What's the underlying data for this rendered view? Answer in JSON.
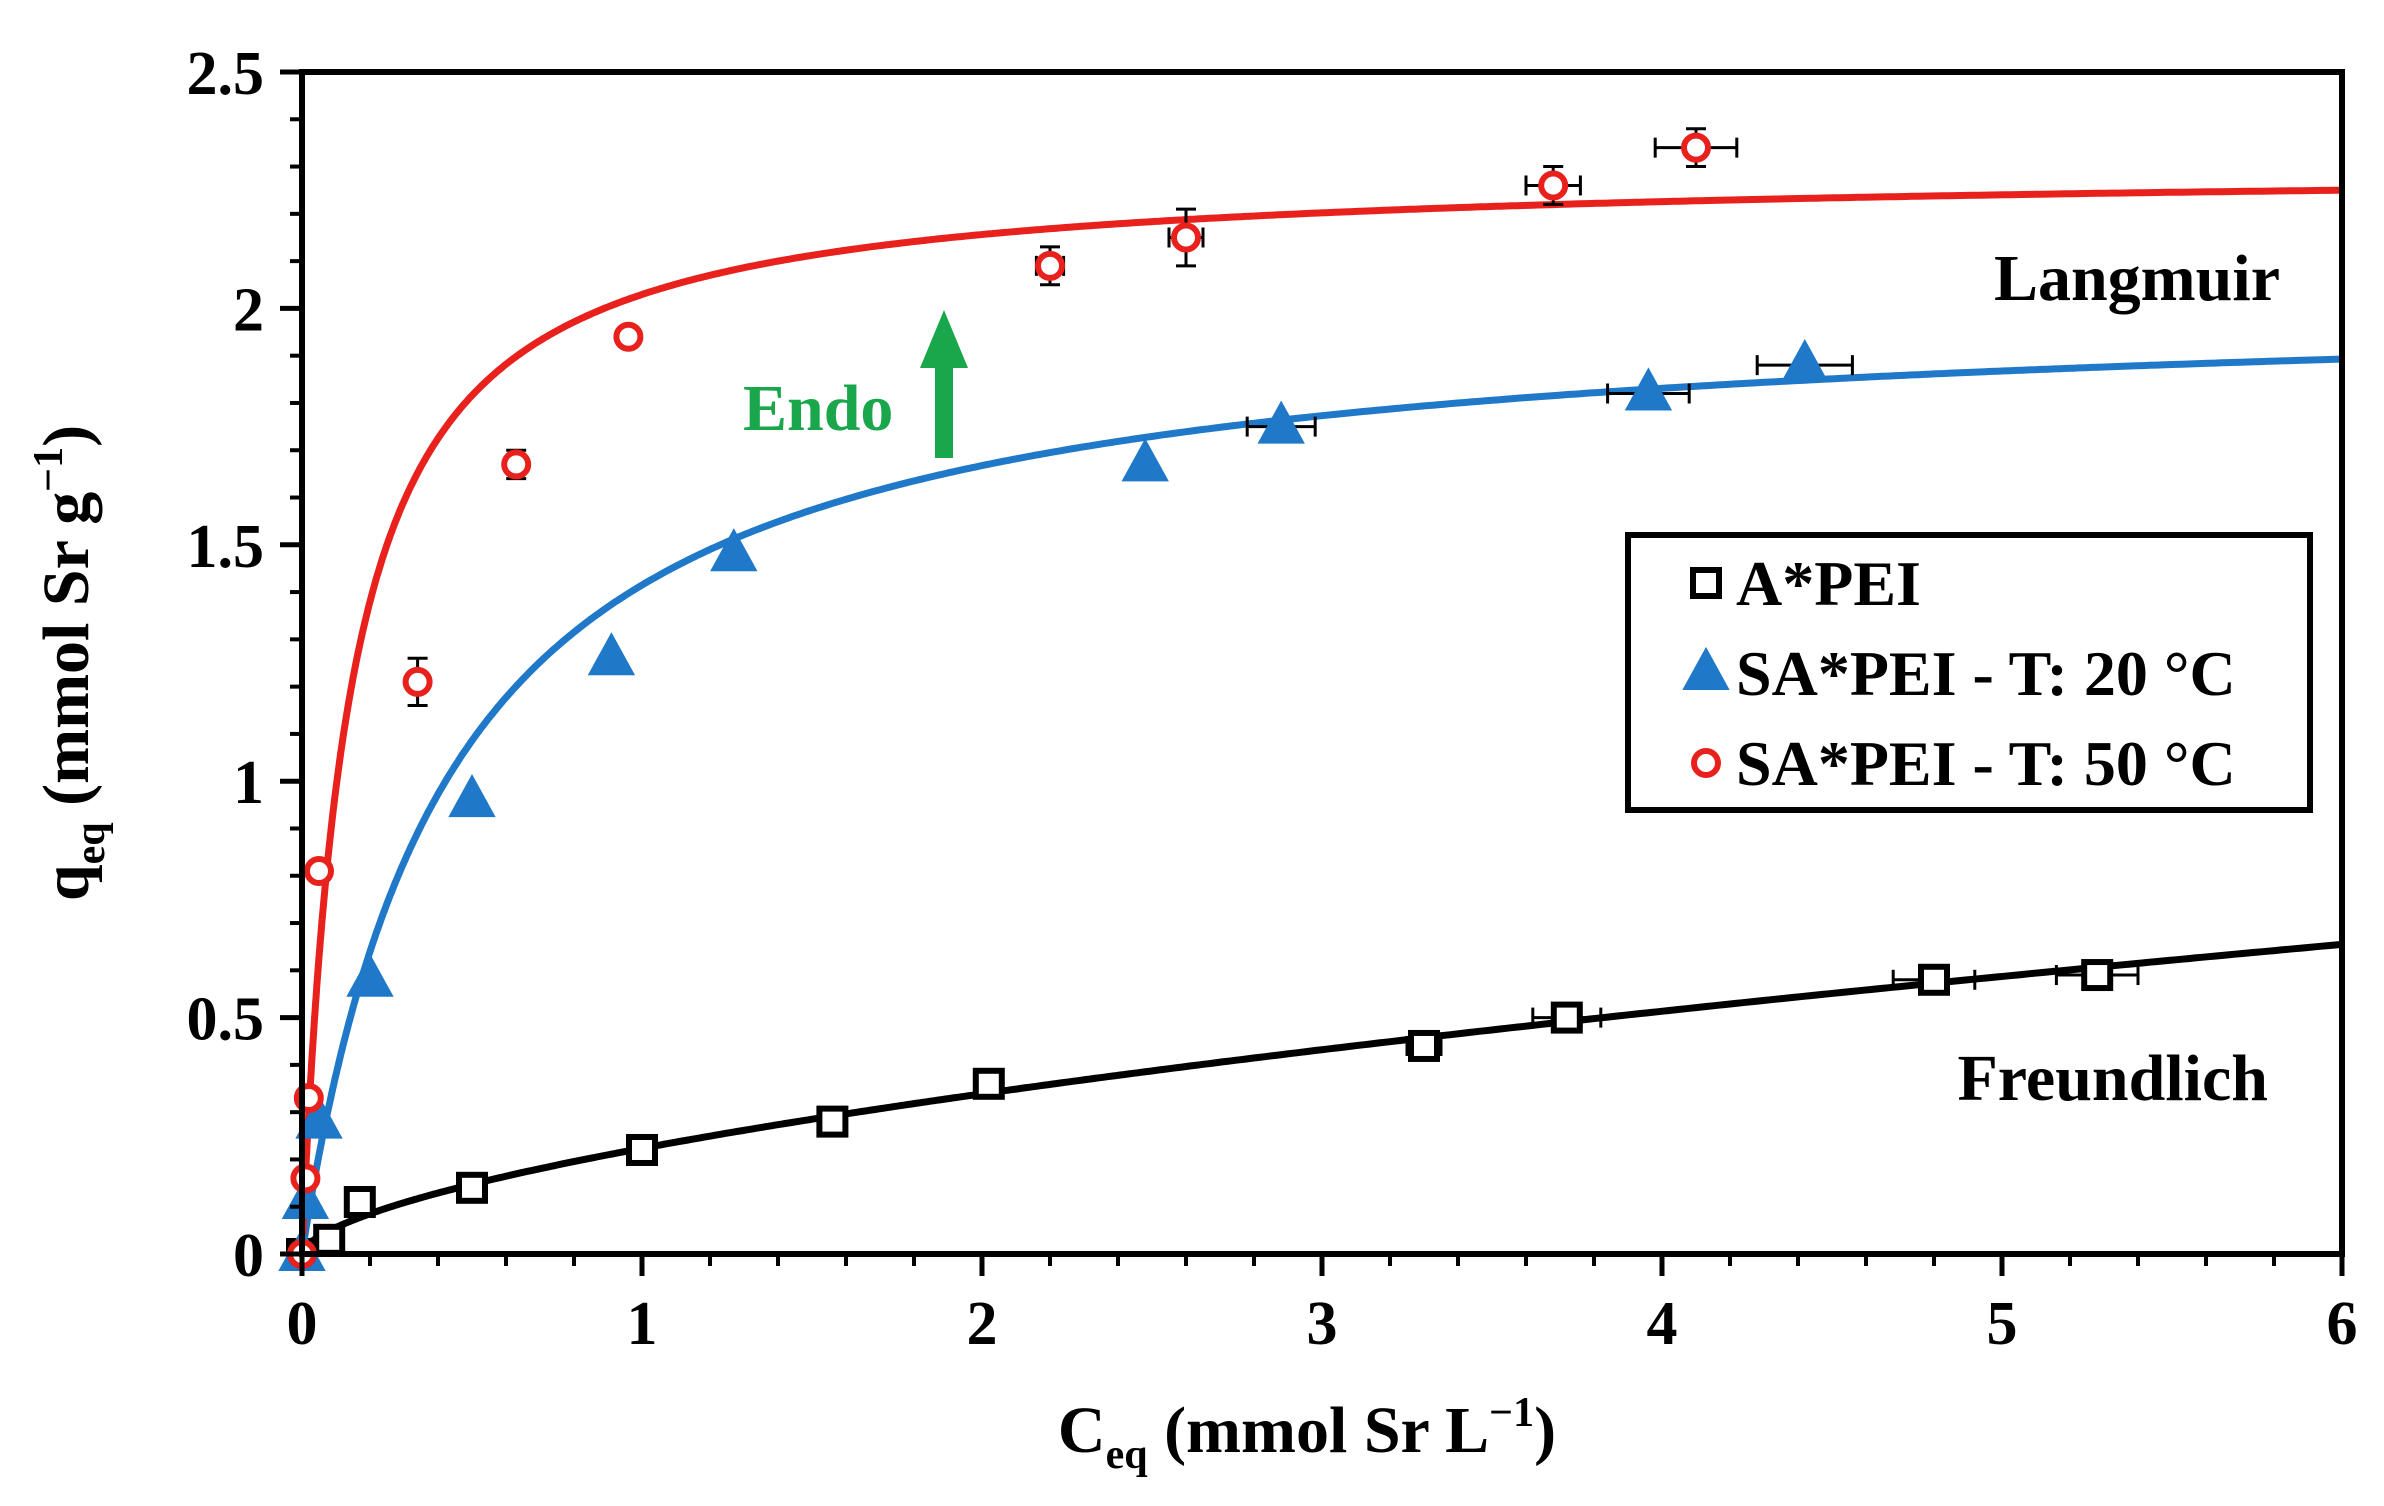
{
  "chart_data": {
    "type": "scatter",
    "xlabel": {
      "main": "C",
      "sub": "eq",
      "rest": " (mmol Sr L",
      "sup": "−1",
      "end": ")"
    },
    "ylabel": {
      "main": "q",
      "sub": "eq",
      "rest": " (mmol Sr g",
      "sup": "−1",
      "end": ")"
    },
    "xlim": [
      0,
      6
    ],
    "ylim": [
      0,
      2.5
    ],
    "xticks": [
      0,
      1,
      2,
      3,
      4,
      5,
      6
    ],
    "xtick_labels": [
      "0",
      "1",
      "2",
      "3",
      "4",
      "5",
      "6"
    ],
    "yticks": [
      0,
      0.5,
      1,
      1.5,
      2,
      2.5
    ],
    "ytick_labels": [
      "0",
      "0.5",
      "1",
      "1.5",
      "2",
      "2.5"
    ],
    "grid": false,
    "legend_position": "right-middle",
    "series": [
      {
        "name": "A*PEI",
        "marker": "square",
        "color": "#000000",
        "points": [
          {
            "x": 0.0,
            "y": 0.0,
            "xerr": 0,
            "yerr": 0
          },
          {
            "x": 0.08,
            "y": 0.03,
            "xerr": 0,
            "yerr": 0
          },
          {
            "x": 0.17,
            "y": 0.11,
            "xerr": 0,
            "yerr": 0
          },
          {
            "x": 0.5,
            "y": 0.14,
            "xerr": 0,
            "yerr": 0
          },
          {
            "x": 1.0,
            "y": 0.22,
            "xerr": 0,
            "yerr": 0
          },
          {
            "x": 1.56,
            "y": 0.28,
            "xerr": 0,
            "yerr": 0
          },
          {
            "x": 2.02,
            "y": 0.36,
            "xerr": 0,
            "yerr": 0
          },
          {
            "x": 3.3,
            "y": 0.44,
            "xerr": 0.05,
            "yerr": 0
          },
          {
            "x": 3.72,
            "y": 0.5,
            "xerr": 0.1,
            "yerr": 0
          },
          {
            "x": 4.8,
            "y": 0.58,
            "xerr": 0.12,
            "yerr": 0
          },
          {
            "x": 5.28,
            "y": 0.59,
            "xerr": 0.12,
            "yerr": 0
          }
        ],
        "fit": {
          "model": "Freundlich",
          "K": 0.2235,
          "n": 0.6
        }
      },
      {
        "name": "SA*PEI - T: 20 °C",
        "marker": "triangle",
        "color": "#1f78c8",
        "points": [
          {
            "x": 0.0,
            "y": 0.0,
            "xerr": 0,
            "yerr": 0
          },
          {
            "x": 0.01,
            "y": 0.11,
            "xerr": 0,
            "yerr": 0
          },
          {
            "x": 0.05,
            "y": 0.28,
            "xerr": 0,
            "yerr": 0
          },
          {
            "x": 0.2,
            "y": 0.58,
            "xerr": 0,
            "yerr": 0
          },
          {
            "x": 0.5,
            "y": 0.96,
            "xerr": 0,
            "yerr": 0
          },
          {
            "x": 0.91,
            "y": 1.26,
            "xerr": 0,
            "yerr": 0
          },
          {
            "x": 1.27,
            "y": 1.48,
            "xerr": 0,
            "yerr": 0
          },
          {
            "x": 2.48,
            "y": 1.67,
            "xerr": 0,
            "yerr": 0
          },
          {
            "x": 2.88,
            "y": 1.75,
            "xerr": 0.1,
            "yerr": 0
          },
          {
            "x": 3.96,
            "y": 1.82,
            "xerr": 0.12,
            "yerr": 0
          },
          {
            "x": 4.42,
            "y": 1.88,
            "xerr": 0.14,
            "yerr": 0
          }
        ],
        "fit": {
          "model": "Langmuir",
          "qmax": 2.03,
          "b": 2.3
        }
      },
      {
        "name": "SA*PEI - T: 50 °C",
        "marker": "circle",
        "color": "#e8211d",
        "points": [
          {
            "x": 0.0,
            "y": 0.0,
            "xerr": 0,
            "yerr": 0
          },
          {
            "x": 0.01,
            "y": 0.16,
            "xerr": 0,
            "yerr": 0
          },
          {
            "x": 0.02,
            "y": 0.33,
            "xerr": 0,
            "yerr": 0
          },
          {
            "x": 0.05,
            "y": 0.81,
            "xerr": 0,
            "yerr": 0
          },
          {
            "x": 0.34,
            "y": 1.21,
            "xerr": 0,
            "yerr": 0.05
          },
          {
            "x": 0.63,
            "y": 1.67,
            "xerr": 0,
            "yerr": 0.03
          },
          {
            "x": 0.96,
            "y": 1.94,
            "xerr": 0,
            "yerr": 0.02
          },
          {
            "x": 2.2,
            "y": 2.09,
            "xerr": 0.04,
            "yerr": 0.04
          },
          {
            "x": 2.6,
            "y": 2.15,
            "xerr": 0.05,
            "yerr": 0.06
          },
          {
            "x": 3.68,
            "y": 2.26,
            "xerr": 0.08,
            "yerr": 0.04
          },
          {
            "x": 4.1,
            "y": 2.34,
            "xerr": 0.12,
            "yerr": 0.04
          }
        ],
        "fit": {
          "model": "Langmuir",
          "qmax": 2.3,
          "b": 7.5
        }
      }
    ],
    "annotations": {
      "langmuir": "Langmuir",
      "freundlich": "Freundlich",
      "endo": "Endo",
      "endo_color": "#1aa64a"
    }
  }
}
